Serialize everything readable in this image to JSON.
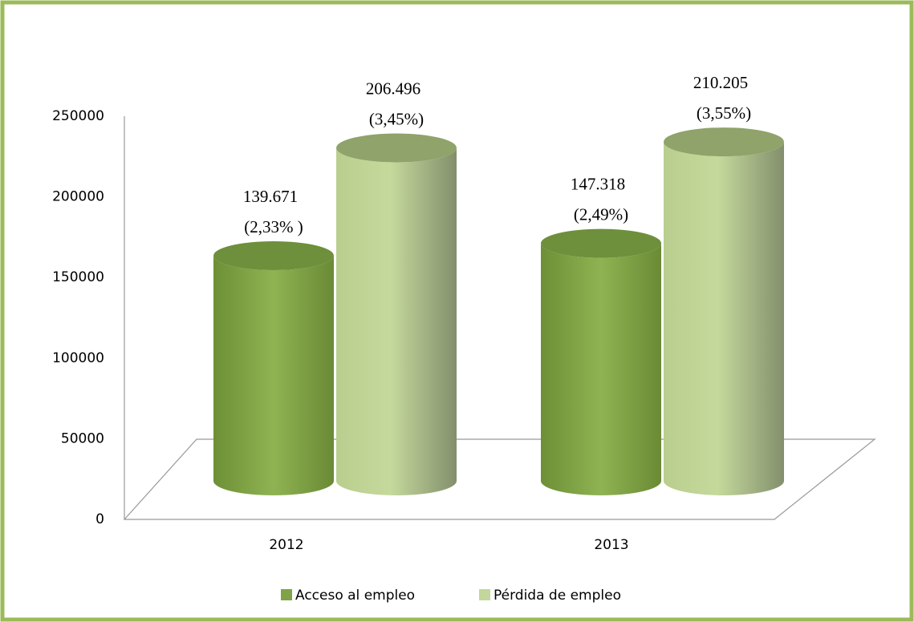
{
  "chart_data": {
    "type": "bar",
    "categories": [
      "2012",
      "2013"
    ],
    "series": [
      {
        "name": "Acceso al empleo",
        "color": "#7fa346",
        "values": [
          139671,
          147318
        ],
        "value_labels": [
          "139.671",
          "147.318"
        ],
        "percent_labels": [
          "(2,33% )",
          "(2,49%)"
        ]
      },
      {
        "name": "Pérdida de empleo",
        "color": "#c3d69b",
        "values": [
          206496,
          210205
        ],
        "value_labels": [
          "206.496",
          "210.205"
        ],
        "percent_labels": [
          "(3,45%)",
          "(3,55%)"
        ]
      }
    ],
    "ylim": [
      0,
      250000
    ],
    "yticks": [
      0,
      50000,
      100000,
      150000,
      200000,
      250000
    ],
    "grid": false,
    "legend": "bottom"
  }
}
